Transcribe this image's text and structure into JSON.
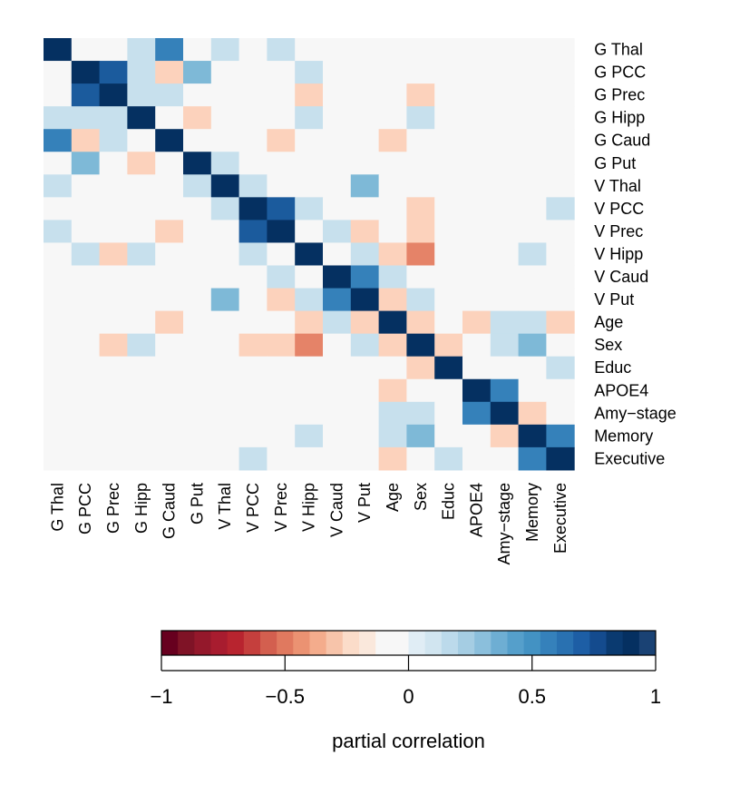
{
  "chart_data": {
    "type": "heatmap",
    "title": "",
    "variables": [
      "G Thal",
      "G PCC",
      "G Prec",
      "G Hipp",
      "G Caud",
      "G Put",
      "V Thal",
      "V PCC",
      "V Prec",
      "V Hipp",
      "V Caud",
      "V Put",
      "Age",
      "Sex",
      "Educ",
      "APOE4",
      "Amy−stage",
      "Memory",
      "Executive"
    ],
    "values": [
      [
        1,
        0,
        0,
        0.15,
        0.6,
        0,
        0.15,
        0,
        0.15,
        0,
        0,
        0,
        0,
        0,
        0,
        0,
        0,
        0,
        0
      ],
      [
        0,
        1,
        0.8,
        0.15,
        -0.15,
        0.35,
        0,
        0,
        0,
        0.15,
        0,
        0,
        0,
        0,
        0,
        0,
        0,
        0,
        0
      ],
      [
        0,
        0.8,
        1,
        0.15,
        0.15,
        0,
        0,
        0,
        0,
        -0.15,
        0,
        0,
        0,
        -0.15,
        0,
        0,
        0,
        0,
        0
      ],
      [
        0.15,
        0.15,
        0.15,
        1,
        0,
        -0.15,
        0,
        0,
        0,
        0.15,
        0,
        0,
        0,
        0.15,
        0,
        0,
        0,
        0,
        0
      ],
      [
        0.6,
        -0.15,
        0.15,
        0,
        1,
        0,
        0,
        0,
        -0.15,
        0,
        0,
        0,
        -0.15,
        0,
        0,
        0,
        0,
        0,
        0
      ],
      [
        0,
        0.35,
        0,
        -0.15,
        0,
        1,
        0.15,
        0,
        0,
        0,
        0,
        0,
        0,
        0,
        0,
        0,
        0,
        0,
        0
      ],
      [
        0.15,
        0,
        0,
        0,
        0,
        0.15,
        1,
        0.15,
        0,
        0,
        0,
        0.35,
        0,
        0,
        0,
        0,
        0,
        0,
        0
      ],
      [
        0,
        0,
        0,
        0,
        0,
        0,
        0.15,
        1,
        0.8,
        0.15,
        0,
        0,
        0,
        -0.15,
        0,
        0,
        0,
        0,
        0.15
      ],
      [
        0.15,
        0,
        0,
        0,
        -0.15,
        0,
        0,
        0.8,
        1,
        0,
        0.15,
        -0.15,
        0,
        -0.15,
        0,
        0,
        0,
        0,
        0
      ],
      [
        0,
        0.15,
        -0.15,
        0.15,
        0,
        0,
        0,
        0.15,
        0,
        1,
        0,
        0.15,
        -0.15,
        -0.4,
        0,
        0,
        0,
        0.15,
        0
      ],
      [
        0,
        0,
        0,
        0,
        0,
        0,
        0,
        0,
        0.15,
        0,
        1,
        0.6,
        0.15,
        0,
        0,
        0,
        0,
        0,
        0
      ],
      [
        0,
        0,
        0,
        0,
        0,
        0,
        0.35,
        0,
        -0.15,
        0.15,
        0.6,
        1,
        -0.15,
        0.15,
        0,
        0,
        0,
        0,
        0
      ],
      [
        0,
        0,
        0,
        0,
        -0.15,
        0,
        0,
        0,
        0,
        -0.15,
        0.15,
        -0.15,
        1,
        -0.15,
        0,
        -0.15,
        0.15,
        0.15,
        -0.15
      ],
      [
        0,
        0,
        -0.15,
        0.15,
        0,
        0,
        0,
        -0.15,
        -0.15,
        -0.4,
        0,
        0.15,
        -0.15,
        1,
        -0.15,
        0,
        0.15,
        0.35,
        0
      ],
      [
        0,
        0,
        0,
        0,
        0,
        0,
        0,
        0,
        0,
        0,
        0,
        0,
        0,
        -0.15,
        1,
        0,
        0,
        0,
        0.15
      ],
      [
        0,
        0,
        0,
        0,
        0,
        0,
        0,
        0,
        0,
        0,
        0,
        0,
        -0.15,
        0,
        0,
        1,
        0.6,
        0,
        0
      ],
      [
        0,
        0,
        0,
        0,
        0,
        0,
        0,
        0,
        0,
        0,
        0,
        0,
        0.15,
        0.15,
        0,
        0.6,
        1,
        -0.15,
        0
      ],
      [
        0,
        0,
        0,
        0,
        0,
        0,
        0,
        0,
        0,
        0.15,
        0,
        0,
        0.15,
        0.35,
        0,
        0,
        -0.15,
        1,
        0.6
      ],
      [
        0,
        0,
        0,
        0,
        0,
        0,
        0,
        0.15,
        0,
        0,
        0,
        0,
        -0.15,
        0,
        0.15,
        0,
        0,
        0.6,
        1
      ]
    ],
    "value_range": [
      -1,
      1
    ],
    "colorbar": {
      "label": "partial correlation",
      "ticks": [
        -1,
        -0.5,
        0,
        0.5,
        1
      ],
      "tick_labels": [
        "−1",
        "−0.5",
        "0",
        "0.5",
        "1"
      ],
      "colors": [
        "#67001f",
        "#7f1326",
        "#94182b",
        "#a81c2f",
        "#b8242f",
        "#c53f3d",
        "#d35f4f",
        "#e0795f",
        "#eb9272",
        "#f4ac8c",
        "#f7c4aa",
        "#fbdcc9",
        "#fae8dc",
        "#f7f7f7",
        "#f7f7f7",
        "#e0edf5",
        "#d1e5f0",
        "#bcdaeb",
        "#a5cde3",
        "#8bbfdc",
        "#6eaed3",
        "#559fcb",
        "#4392c3",
        "#3581bb",
        "#2971b1",
        "#1d5ea5",
        "#144b8e",
        "#0a3a70",
        "#053061",
        "#1a4274"
      ]
    }
  }
}
